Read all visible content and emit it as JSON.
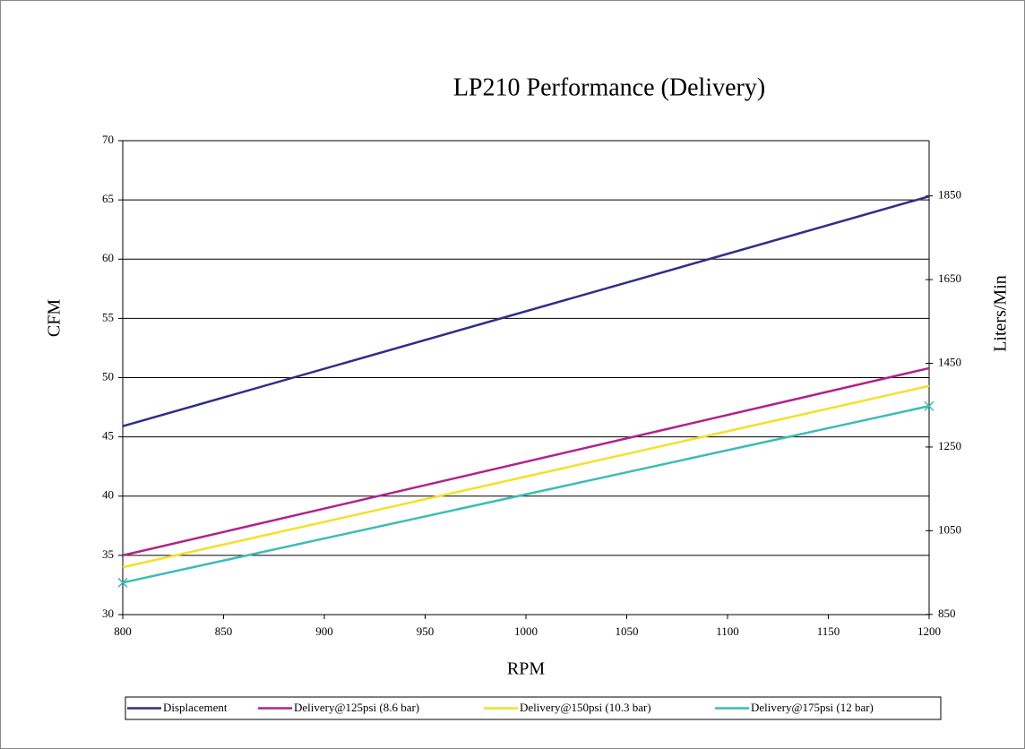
{
  "chart_data": {
    "type": "line",
    "title": "LP210 Performance (Delivery)",
    "x_label": "RPM",
    "y_label": "CFM",
    "y2_label": "Liters/Min",
    "x": [
      800,
      1200
    ],
    "series": [
      {
        "name": "Displacement",
        "color": "#2e2e8a",
        "values": [
          45.9,
          65.3
        ]
      },
      {
        "name": "Delivery@125psi (8.6 bar)",
        "color": "#b0238a",
        "values": [
          35.0,
          50.8
        ]
      },
      {
        "name": "Delivery@150psi (10.3 bar)",
        "color": "#f2e12a",
        "values": [
          34.0,
          49.3
        ]
      },
      {
        "name": "Delivery@175psi (12 bar)",
        "color": "#3bbcb8",
        "values": [
          32.7,
          47.6
        ],
        "marker": "x"
      }
    ],
    "xlim": [
      800,
      1200
    ],
    "xticks": [
      800,
      850,
      900,
      950,
      1000,
      1050,
      1100,
      1150,
      1200
    ],
    "ylim": [
      30,
      70
    ],
    "yticks": [
      30,
      35,
      40,
      45,
      50,
      55,
      60,
      65,
      70
    ],
    "y2lim": [
      849.5,
      1982
    ],
    "y2ticks": [
      850,
      1050,
      1250,
      1450,
      1650,
      1850
    ],
    "grid": true,
    "legend": "bottom"
  }
}
